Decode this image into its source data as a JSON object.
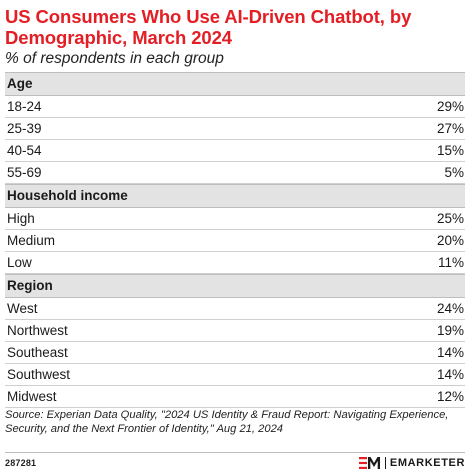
{
  "accent_color": "#e31e24",
  "header": {
    "title": "US Consumers Who Use AI-Driven Chatbot, by Demographic, March 2024",
    "subtitle": "% of respondents in each group"
  },
  "chart_data": {
    "type": "table",
    "title": "US Consumers Who Use AI-Driven Chatbot, by Demographic, March 2024",
    "subtitle": "% of respondents in each group",
    "sections": [
      {
        "name": "Age",
        "rows": [
          {
            "label": "18-24",
            "value": 29,
            "display": "29%"
          },
          {
            "label": "25-39",
            "value": 27,
            "display": "27%"
          },
          {
            "label": "40-54",
            "value": 15,
            "display": "15%"
          },
          {
            "label": "55-69",
            "value": 5,
            "display": "5%"
          }
        ]
      },
      {
        "name": "Household income",
        "rows": [
          {
            "label": "High",
            "value": 25,
            "display": "25%"
          },
          {
            "label": "Medium",
            "value": 20,
            "display": "20%"
          },
          {
            "label": "Low",
            "value": 11,
            "display": "11%"
          }
        ]
      },
      {
        "name": "Region",
        "rows": [
          {
            "label": "West",
            "value": 24,
            "display": "24%"
          },
          {
            "label": "Northwest",
            "value": 19,
            "display": "19%"
          },
          {
            "label": "Southeast",
            "value": 14,
            "display": "14%"
          },
          {
            "label": "Southwest",
            "value": 14,
            "display": "14%"
          },
          {
            "label": "Midwest",
            "value": 12,
            "display": "12%"
          }
        ]
      }
    ]
  },
  "source": "Source: Experian Data Quality, \"2024 US Identity & Fraud Report: Navigating Experience, Security, and the Next Frontier of Identity,\" Aug 21, 2024",
  "footer": {
    "chart_id": "287281",
    "brand_name": "EMARKETER",
    "brand_icon": "em-logo-icon"
  }
}
